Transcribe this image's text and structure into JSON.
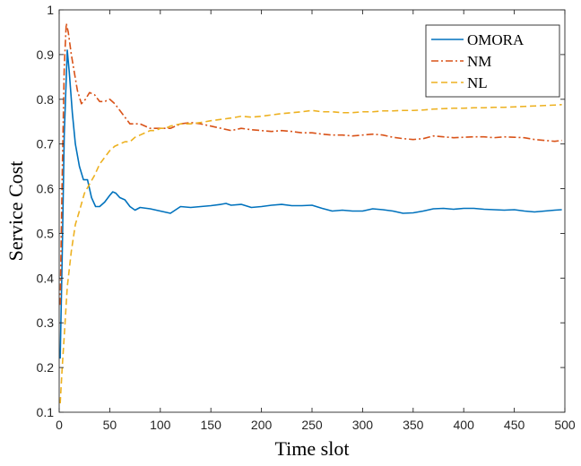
{
  "chart_data": {
    "type": "line",
    "title": "",
    "xlabel": "Time slot",
    "ylabel": "Service Cost",
    "xlim": [
      0,
      500
    ],
    "ylim": [
      0.1,
      1
    ],
    "xticks": [
      "0",
      "50",
      "100",
      "150",
      "200",
      "250",
      "300",
      "350",
      "400",
      "450",
      "500"
    ],
    "yticks": [
      "0.1",
      "0.2",
      "0.3",
      "0.4",
      "0.5",
      "0.6",
      "0.7",
      "0.8",
      "0.9",
      "1"
    ],
    "grid": false,
    "legend_position": "top-right",
    "series": [
      {
        "name": "OMORA",
        "color": "#0072BD",
        "dash": "solid",
        "x": [
          1,
          3,
          5,
          8,
          10,
          13,
          16,
          20,
          24,
          28,
          32,
          36,
          40,
          45,
          50,
          53,
          56,
          60,
          65,
          70,
          75,
          80,
          90,
          100,
          110,
          120,
          130,
          140,
          150,
          160,
          165,
          170,
          180,
          190,
          200,
          210,
          220,
          230,
          240,
          250,
          260,
          270,
          280,
          290,
          300,
          310,
          320,
          330,
          340,
          350,
          360,
          370,
          380,
          390,
          400,
          410,
          420,
          430,
          440,
          450,
          460,
          470,
          480,
          490,
          497
        ],
        "y": [
          0.22,
          0.45,
          0.72,
          0.91,
          0.86,
          0.77,
          0.7,
          0.65,
          0.62,
          0.62,
          0.58,
          0.56,
          0.56,
          0.57,
          0.585,
          0.593,
          0.59,
          0.58,
          0.575,
          0.56,
          0.552,
          0.558,
          0.555,
          0.55,
          0.545,
          0.56,
          0.558,
          0.56,
          0.562,
          0.565,
          0.567,
          0.563,
          0.565,
          0.558,
          0.56,
          0.563,
          0.565,
          0.562,
          0.562,
          0.563,
          0.556,
          0.55,
          0.552,
          0.55,
          0.55,
          0.555,
          0.553,
          0.55,
          0.545,
          0.546,
          0.55,
          0.555,
          0.556,
          0.554,
          0.556,
          0.556,
          0.554,
          0.553,
          0.552,
          0.553,
          0.55,
          0.548,
          0.55,
          0.552,
          0.553
        ]
      },
      {
        "name": "NM",
        "color": "#D95319",
        "dash": "dashdot",
        "x": [
          1,
          3,
          5,
          7,
          9,
          12,
          15,
          18,
          22,
          26,
          30,
          35,
          40,
          45,
          50,
          55,
          60,
          65,
          70,
          80,
          90,
          100,
          110,
          120,
          130,
          140,
          150,
          160,
          170,
          180,
          190,
          200,
          210,
          220,
          230,
          240,
          250,
          260,
          270,
          280,
          290,
          300,
          310,
          320,
          330,
          340,
          350,
          360,
          370,
          380,
          390,
          400,
          410,
          420,
          430,
          440,
          450,
          460,
          470,
          480,
          490,
          497
        ],
        "y": [
          0.34,
          0.63,
          0.87,
          0.97,
          0.95,
          0.9,
          0.86,
          0.82,
          0.79,
          0.8,
          0.815,
          0.81,
          0.795,
          0.795,
          0.8,
          0.79,
          0.775,
          0.76,
          0.745,
          0.745,
          0.735,
          0.735,
          0.735,
          0.745,
          0.748,
          0.745,
          0.74,
          0.735,
          0.73,
          0.735,
          0.732,
          0.73,
          0.728,
          0.73,
          0.728,
          0.725,
          0.725,
          0.722,
          0.72,
          0.72,
          0.718,
          0.72,
          0.722,
          0.72,
          0.715,
          0.712,
          0.71,
          0.712,
          0.718,
          0.716,
          0.714,
          0.715,
          0.716,
          0.716,
          0.714,
          0.716,
          0.715,
          0.714,
          0.71,
          0.708,
          0.706,
          0.708
        ]
      },
      {
        "name": "NL",
        "color": "#EDB120",
        "dash": "dashed",
        "x": [
          1,
          3,
          5,
          8,
          12,
          16,
          20,
          25,
          30,
          35,
          40,
          45,
          50,
          55,
          60,
          65,
          70,
          75,
          80,
          85,
          90,
          95,
          100,
          105,
          110,
          120,
          130,
          140,
          150,
          160,
          170,
          180,
          190,
          200,
          210,
          220,
          230,
          240,
          250,
          260,
          270,
          280,
          290,
          300,
          310,
          320,
          330,
          340,
          350,
          360,
          370,
          380,
          390,
          400,
          410,
          420,
          430,
          440,
          450,
          460,
          470,
          480,
          490,
          497
        ],
        "y": [
          0.12,
          0.2,
          0.27,
          0.38,
          0.46,
          0.52,
          0.55,
          0.59,
          0.61,
          0.63,
          0.655,
          0.67,
          0.685,
          0.695,
          0.7,
          0.705,
          0.705,
          0.715,
          0.72,
          0.725,
          0.73,
          0.73,
          0.735,
          0.735,
          0.74,
          0.745,
          0.745,
          0.748,
          0.752,
          0.755,
          0.758,
          0.762,
          0.76,
          0.762,
          0.765,
          0.768,
          0.77,
          0.772,
          0.775,
          0.772,
          0.772,
          0.77,
          0.77,
          0.772,
          0.772,
          0.774,
          0.774,
          0.775,
          0.775,
          0.776,
          0.778,
          0.779,
          0.78,
          0.78,
          0.781,
          0.781,
          0.782,
          0.782,
          0.783,
          0.784,
          0.785,
          0.786,
          0.787,
          0.788
        ]
      }
    ]
  }
}
